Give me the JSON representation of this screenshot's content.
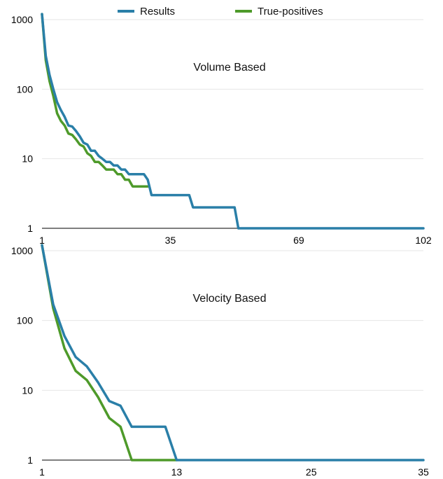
{
  "legend": [
    {
      "label": "Results",
      "color": "#2a7fa8"
    },
    {
      "label": "True-positives",
      "color": "#4e9a2a"
    }
  ],
  "chart_data": [
    {
      "type": "line",
      "title": "Volume Based",
      "y_scale": "log",
      "ylim": [
        1,
        1000
      ],
      "xlim": [
        1,
        102
      ],
      "y_ticks": [
        "1000",
        "100",
        "10",
        "1"
      ],
      "x_ticks": [
        "1",
        "35",
        "69",
        "102"
      ],
      "grid": true,
      "legend_position": "top",
      "series": [
        {
          "name": "Results",
          "color": "#2a7fa8",
          "x": [
            1,
            2,
            3,
            4,
            5,
            6,
            7,
            8,
            9,
            10,
            11,
            12,
            13,
            14,
            15,
            16,
            17,
            18,
            19,
            20,
            21,
            22,
            23,
            24,
            25,
            26,
            27,
            28,
            29,
            30,
            40,
            41,
            52,
            53,
            102
          ],
          "y": [
            1200,
            300,
            160,
            100,
            65,
            50,
            40,
            30,
            29,
            25,
            21,
            17,
            16,
            13,
            13,
            11,
            10,
            9,
            9,
            8,
            8,
            7,
            7,
            6,
            6,
            6,
            6,
            6,
            5,
            3,
            3,
            2,
            2,
            1,
            1
          ]
        },
        {
          "name": "True-positives",
          "color": "#4e9a2a",
          "x": [
            1,
            2,
            3,
            4,
            5,
            6,
            7,
            8,
            9,
            10,
            11,
            12,
            13,
            14,
            15,
            16,
            17,
            18,
            19,
            20,
            21,
            22,
            23,
            24,
            25,
            26,
            27,
            28,
            29
          ],
          "y": [
            1200,
            260,
            130,
            80,
            45,
            35,
            30,
            23,
            22,
            19,
            16,
            15,
            12,
            11,
            9,
            9,
            8,
            7,
            7,
            7,
            6,
            6,
            5,
            5,
            4,
            4,
            4,
            4,
            4
          ]
        }
      ]
    },
    {
      "type": "line",
      "title": "Velocity Based",
      "y_scale": "log",
      "ylim": [
        1,
        1000
      ],
      "xlim": [
        1,
        35
      ],
      "y_ticks": [
        "1000",
        "100",
        "10",
        "1"
      ],
      "x_ticks": [
        "1",
        "13",
        "25",
        "35"
      ],
      "grid": true,
      "series": [
        {
          "name": "Results",
          "color": "#2a7fa8",
          "x": [
            1,
            2,
            3,
            4,
            5,
            6,
            7,
            8,
            9,
            10,
            11,
            12,
            13,
            35
          ],
          "y": [
            1200,
            170,
            60,
            30,
            22,
            13,
            7,
            6,
            3,
            3,
            3,
            3,
            1,
            1
          ]
        },
        {
          "name": "True-positives",
          "color": "#4e9a2a",
          "x": [
            1,
            2,
            3,
            4,
            5,
            6,
            7,
            8,
            9,
            13
          ],
          "y": [
            1200,
            150,
            40,
            19,
            14,
            8,
            4,
            3,
            1,
            1
          ]
        }
      ]
    }
  ]
}
